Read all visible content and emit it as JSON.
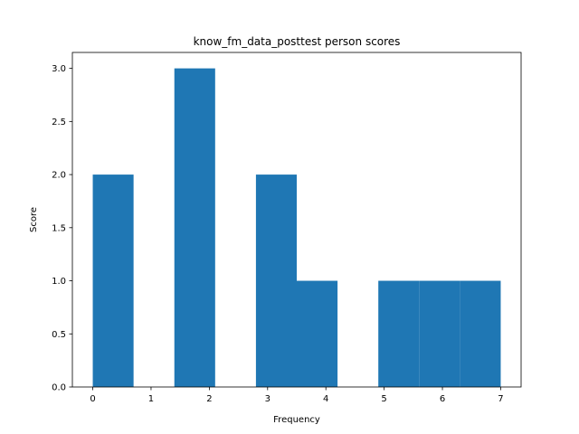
{
  "chart_data": {
    "type": "bar",
    "title": "know_fm_data_posttest person scores",
    "xlabel": "Frequency",
    "ylabel": "Score",
    "xlim": [
      -0.35,
      7.35
    ],
    "ylim": [
      0,
      3.15
    ],
    "xticks": [
      0,
      1,
      2,
      3,
      4,
      5,
      6,
      7
    ],
    "yticks": [
      0.0,
      0.5,
      1.0,
      1.5,
      2.0,
      2.5,
      3.0
    ],
    "ytick_labels": [
      "0.0",
      "0.5",
      "1.0",
      "1.5",
      "2.0",
      "2.5",
      "3.0"
    ],
    "bins": [
      {
        "x0": 0.0,
        "x1": 0.7,
        "value": 2
      },
      {
        "x0": 0.7,
        "x1": 1.4,
        "value": 0
      },
      {
        "x0": 1.4,
        "x1": 2.1,
        "value": 3
      },
      {
        "x0": 2.1,
        "x1": 2.8,
        "value": 0
      },
      {
        "x0": 2.8,
        "x1": 3.5,
        "value": 2
      },
      {
        "x0": 3.5,
        "x1": 4.2,
        "value": 1
      },
      {
        "x0": 4.2,
        "x1": 4.9,
        "value": 0
      },
      {
        "x0": 4.9,
        "x1": 5.6,
        "value": 1
      },
      {
        "x0": 5.6,
        "x1": 6.3,
        "value": 1
      },
      {
        "x0": 6.3,
        "x1": 7.0,
        "value": 1
      }
    ],
    "bar_color": "#1f77b4",
    "grid": false,
    "legend": "none"
  }
}
